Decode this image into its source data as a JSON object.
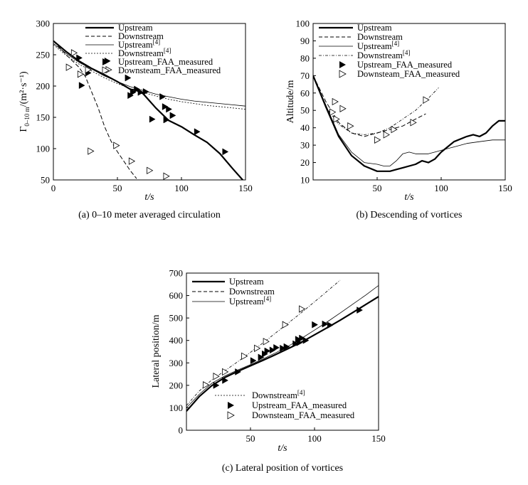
{
  "chart_data": [
    {
      "type": "line",
      "caption": "(a) 0–10 meter averaged circulation",
      "xlabel": "t/s",
      "ylabel_main": "Γ",
      "ylabel_sub": "0–10 m",
      "ylabel_unit": "/(m²·s⁻¹)",
      "xlim": [
        0,
        150
      ],
      "ylim": [
        50,
        300
      ],
      "xticks": [
        "0",
        "50",
        "100",
        "150"
      ],
      "yticks": [
        "50",
        "100",
        "150",
        "200",
        "250",
        "300"
      ],
      "legend_position": "top-right",
      "legend": [
        {
          "label": "Upstream",
          "sup": "",
          "style": "thick"
        },
        {
          "label": "Downstream",
          "sup": "",
          "style": "dashed"
        },
        {
          "label": "Upstream",
          "sup": "[4]",
          "style": "thin"
        },
        {
          "label": "Downstream",
          "sup": "[4]",
          "style": "fine-dashed"
        },
        {
          "label": "Upstream_FAA_measured",
          "sup": "",
          "style": "filled-marker"
        },
        {
          "label": "Downsteam_FAA_measured",
          "sup": "",
          "style": "open-marker"
        }
      ],
      "series": [
        {
          "key": "up",
          "style": "thick",
          "x": [
            0,
            10,
            20,
            30,
            40,
            50,
            60,
            65,
            70,
            80,
            90,
            100,
            110,
            120,
            130,
            140,
            150
          ],
          "y": [
            272,
            255,
            240,
            228,
            218,
            207,
            195,
            193,
            188,
            165,
            145,
            135,
            122,
            110,
            92,
            68,
            45
          ]
        },
        {
          "key": "down",
          "style": "dashed",
          "x": [
            0,
            10,
            20,
            25,
            30,
            35,
            40,
            45,
            50,
            55,
            60,
            65
          ],
          "y": [
            272,
            250,
            230,
            215,
            190,
            165,
            135,
            112,
            95,
            80,
            65,
            52
          ]
        },
        {
          "key": "up_ref",
          "style": "thin",
          "x": [
            0,
            10,
            20,
            30,
            40,
            50,
            60,
            70,
            80,
            90,
            100,
            110,
            120,
            130,
            140,
            150
          ],
          "y": [
            268,
            252,
            238,
            227,
            216,
            207,
            199,
            193,
            187,
            183,
            179,
            176,
            174,
            172,
            170,
            168
          ]
        },
        {
          "key": "down_ref",
          "style": "fine-dashed",
          "x": [
            0,
            10,
            20,
            30,
            40,
            50,
            60,
            70,
            80,
            90,
            100,
            110,
            120,
            130,
            140,
            150
          ],
          "y": [
            266,
            249,
            235,
            224,
            213,
            204,
            196,
            190,
            184,
            179,
            175,
            172,
            169,
            167,
            165,
            163
          ]
        },
        {
          "key": "up_meas",
          "style": "filled-marker",
          "x": [
            20,
            22,
            27,
            42,
            58,
            60,
            62,
            65,
            68,
            72,
            77,
            85,
            87,
            88,
            90,
            93,
            112,
            134
          ],
          "y": [
            245,
            201,
            221,
            240,
            213,
            185,
            190,
            195,
            190,
            191,
            147,
            183,
            167,
            146,
            163,
            153,
            127,
            95
          ]
        },
        {
          "key": "down_meas",
          "style": "open-marker",
          "x": [
            12,
            16,
            21,
            27,
            29,
            43,
            49,
            61,
            75,
            88
          ],
          "y": [
            230,
            253,
            219,
            226,
            96,
            226,
            105,
            80,
            65,
            56
          ]
        }
      ]
    },
    {
      "type": "line",
      "caption": "(b) Descending of vortices",
      "xlabel": "t/s",
      "ylabel": "Altitude/m",
      "xlim": [
        0,
        150
      ],
      "ylim": [
        10,
        100
      ],
      "xticks": [
        "50",
        "100",
        "150"
      ],
      "yticks": [
        "10",
        "20",
        "30",
        "40",
        "50",
        "60",
        "70",
        "80",
        "90",
        "100"
      ],
      "legend_position": "top-right",
      "legend": [
        {
          "label": "Upstream",
          "sup": "",
          "style": "thick"
        },
        {
          "label": "Downstream",
          "sup": "",
          "style": "dashed"
        },
        {
          "label": "Upstream",
          "sup": "[4]",
          "style": "thin"
        },
        {
          "label": "Downstream",
          "sup": "[4]",
          "style": "dash-dot"
        },
        {
          "label": "Upstream_FAA_measured",
          "sup": "",
          "style": "filled-marker"
        },
        {
          "label": "Downsteam_FAA_measured",
          "sup": "",
          "style": "open-marker"
        }
      ],
      "series": [
        {
          "key": "up",
          "style": "thick",
          "x": [
            0,
            10,
            20,
            30,
            40,
            50,
            60,
            65,
            70,
            80,
            85,
            90,
            95,
            100,
            110,
            120,
            125,
            130,
            135,
            140,
            145,
            150
          ],
          "y": [
            70,
            52,
            35,
            24,
            18,
            15,
            15,
            16,
            17,
            19,
            21,
            20,
            22,
            26,
            32,
            35,
            36,
            35,
            37,
            41,
            44,
            44
          ]
        },
        {
          "key": "down",
          "style": "dashed",
          "x": [
            0,
            10,
            20,
            30,
            40,
            50,
            60,
            70,
            80,
            88
          ],
          "y": [
            70,
            55,
            43,
            37,
            35,
            37,
            39,
            41,
            45,
            48
          ]
        },
        {
          "key": "up_ref",
          "style": "thin",
          "x": [
            0,
            10,
            20,
            30,
            40,
            50,
            55,
            60,
            65,
            70,
            75,
            80,
            85,
            90,
            95,
            100,
            110,
            120,
            130,
            140,
            150
          ],
          "y": [
            70,
            53,
            36,
            26,
            20,
            19,
            18,
            18,
            21,
            25,
            26,
            25,
            25,
            25,
            26,
            27,
            29,
            31,
            32,
            33,
            33
          ]
        },
        {
          "key": "down_ref",
          "style": "dash-dot",
          "x": [
            0,
            10,
            20,
            30,
            40,
            50,
            60,
            70,
            80,
            90,
            98
          ],
          "y": [
            70,
            52,
            42,
            37,
            36,
            37,
            40,
            45,
            50,
            57,
            63
          ]
        },
        {
          "key": "down_meas",
          "style": "open-marker",
          "x": [
            15,
            17,
            18,
            23,
            29,
            50,
            57,
            63,
            78,
            88
          ],
          "y": [
            49,
            55,
            45,
            51,
            41,
            33,
            36,
            39,
            43,
            56
          ]
        }
      ]
    },
    {
      "type": "line",
      "caption": "(c) Lateral position of vortices",
      "xlabel": "t/s",
      "ylabel": "Lateral position/m",
      "xlim": [
        0,
        150
      ],
      "ylim": [
        0,
        700
      ],
      "xticks": [
        "50",
        "100",
        "150"
      ],
      "yticks": [
        "0",
        "100",
        "200",
        "300",
        "400",
        "500",
        "600",
        "700"
      ],
      "legend": [
        {
          "label": "Upstream",
          "sup": "",
          "style": "thick"
        },
        {
          "label": "Downstream",
          "sup": "",
          "style": "dashed"
        },
        {
          "label": "Upstream",
          "sup": "[4]",
          "style": "thin"
        },
        {
          "label": "Downstream",
          "sup": "[4]",
          "style": "fine-dashed"
        },
        {
          "label": "Upstream_FAA_measured",
          "sup": "",
          "style": "filled-marker"
        },
        {
          "label": "Downsteam_FAA_measured",
          "sup": "",
          "style": "open-marker"
        }
      ],
      "series": [
        {
          "key": "up",
          "style": "thick",
          "x": [
            0,
            10,
            20,
            30,
            40,
            50,
            60,
            70,
            80,
            90,
            100,
            110,
            120,
            130,
            140,
            150
          ],
          "y": [
            85,
            150,
            200,
            235,
            262,
            287,
            312,
            338,
            365,
            393,
            425,
            457,
            490,
            525,
            560,
            595
          ]
        },
        {
          "key": "up_ref",
          "style": "thin",
          "x": [
            0,
            10,
            20,
            30,
            40,
            50,
            60,
            70,
            80,
            90,
            100,
            110,
            120,
            130,
            140,
            150
          ],
          "y": [
            100,
            160,
            210,
            242,
            268,
            292,
            318,
            346,
            376,
            410,
            446,
            483,
            522,
            562,
            602,
            645
          ]
        },
        {
          "key": "down_ref",
          "style": "dash-dot",
          "x": [
            0,
            10,
            20,
            30,
            40,
            50,
            60,
            70,
            80,
            90,
            100,
            110,
            120
          ],
          "y": [
            110,
            175,
            225,
            265,
            305,
            347,
            390,
            435,
            480,
            525,
            572,
            620,
            668
          ]
        },
        {
          "key": "up_meas",
          "style": "filled-marker",
          "x": [
            23,
            30,
            40,
            52,
            58,
            61,
            63,
            67,
            70,
            75,
            78,
            85,
            87,
            88,
            90,
            93,
            100,
            108,
            112,
            135
          ],
          "y": [
            200,
            222,
            260,
            310,
            325,
            340,
            353,
            357,
            368,
            365,
            372,
            385,
            405,
            390,
            410,
            400,
            470,
            473,
            468,
            535
          ]
        },
        {
          "key": "down_meas",
          "style": "open-marker",
          "x": [
            15,
            23,
            30,
            45,
            55,
            62,
            77,
            90
          ],
          "y": [
            202,
            240,
            260,
            330,
            365,
            395,
            470,
            540
          ]
        }
      ]
    }
  ]
}
